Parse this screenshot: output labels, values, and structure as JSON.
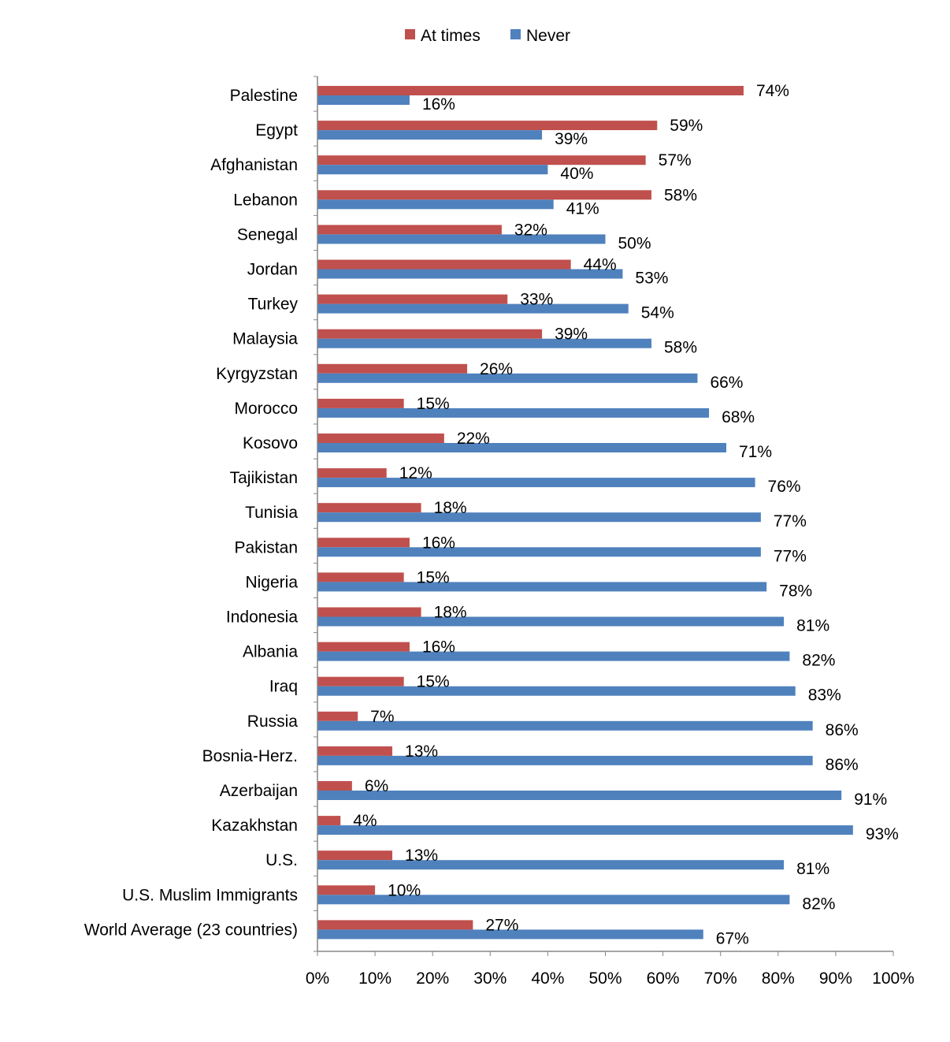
{
  "chart_data": {
    "type": "bar",
    "orientation": "horizontal",
    "categories": [
      "Palestine",
      "Egypt",
      "Afghanistan",
      "Lebanon",
      "Senegal",
      "Jordan",
      "Turkey",
      "Malaysia",
      "Kyrgyzstan",
      "Morocco",
      "Kosovo",
      "Tajikistan",
      "Tunisia",
      "Pakistan",
      "Nigeria",
      "Indonesia",
      "Albania",
      "Iraq",
      "Russia",
      "Bosnia-Herz.",
      "Azerbaijan",
      "Kazakhstan",
      "U.S.",
      "U.S. Muslim Immigrants",
      "World Average (23 countries)"
    ],
    "series": [
      {
        "name": "At times",
        "color": "#c0504d",
        "values": [
          74,
          59,
          57,
          58,
          32,
          44,
          33,
          39,
          26,
          15,
          22,
          12,
          18,
          16,
          15,
          18,
          16,
          15,
          7,
          13,
          6,
          4,
          13,
          10,
          27
        ]
      },
      {
        "name": "Never",
        "color": "#4f81bd",
        "values": [
          16,
          39,
          40,
          41,
          50,
          53,
          54,
          58,
          66,
          68,
          71,
          76,
          77,
          77,
          78,
          81,
          82,
          83,
          86,
          86,
          91,
          93,
          81,
          82,
          67
        ]
      }
    ],
    "value_suffix": "%",
    "xlim": [
      0,
      100
    ],
    "xticks": [
      "0%",
      "10%",
      "20%",
      "30%",
      "40%",
      "50%",
      "60%",
      "70%",
      "80%",
      "90%",
      "100%"
    ],
    "legend_position": "top",
    "grid": false,
    "title": "",
    "xlabel": "",
    "ylabel": ""
  }
}
